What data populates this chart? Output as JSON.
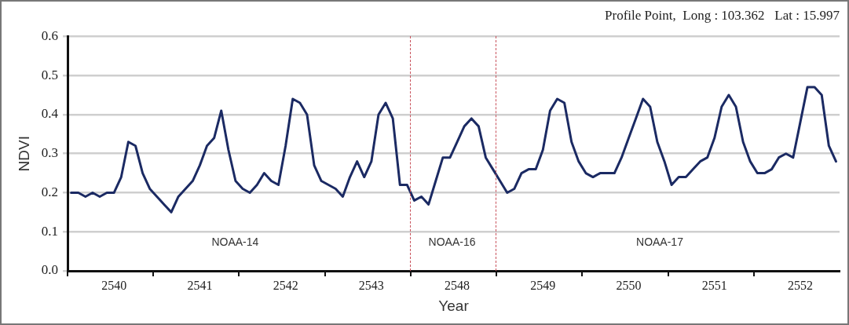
{
  "chart_data": {
    "type": "line",
    "title": "Profile Point,  Long : 103.362   Lat : 15.997",
    "xlabel": "Year",
    "ylabel": "NDVI",
    "categories": [
      null,
      null,
      null,
      null,
      null,
      null,
      "2540",
      null,
      null,
      null,
      null,
      null,
      null,
      null,
      null,
      null,
      null,
      null,
      "2541",
      null,
      null,
      null,
      null,
      null,
      null,
      null,
      null,
      null,
      null,
      null,
      "2542",
      null,
      null,
      null,
      null,
      null,
      null,
      null,
      null,
      null,
      null,
      null,
      "2543",
      null,
      null,
      null,
      null,
      null,
      null,
      null,
      null,
      null,
      null,
      null,
      "2548",
      null,
      null,
      null,
      null,
      null,
      null,
      null,
      null,
      null,
      null,
      null,
      "2549",
      null,
      null,
      null,
      null,
      null,
      null,
      null,
      null,
      null,
      null,
      null,
      "2550",
      null,
      null,
      null,
      null,
      null,
      null,
      null,
      null,
      null,
      null,
      null,
      "2551",
      null,
      null,
      null,
      null,
      null,
      null,
      null,
      null,
      null,
      null,
      null,
      "2552",
      null,
      null,
      null,
      null,
      null
    ],
    "series": [
      {
        "color": "#1b2a63",
        "values": [
          0.2,
          0.2,
          0.19,
          0.2,
          0.19,
          0.2,
          0.2,
          0.24,
          0.33,
          0.32,
          0.25,
          0.21,
          0.19,
          0.17,
          0.15,
          0.19,
          0.21,
          0.23,
          0.27,
          0.32,
          0.34,
          0.41,
          0.31,
          0.23,
          0.21,
          0.2,
          0.22,
          0.25,
          0.23,
          0.22,
          0.32,
          0.44,
          0.43,
          0.4,
          0.27,
          0.23,
          0.22,
          0.21,
          0.19,
          0.24,
          0.28,
          0.24,
          0.28,
          0.4,
          0.43,
          0.39,
          0.22,
          0.22,
          0.18,
          0.19,
          0.17,
          0.23,
          0.29,
          0.29,
          0.33,
          0.37,
          0.39,
          0.37,
          0.29,
          0.26,
          0.23,
          0.2,
          0.21,
          0.25,
          0.26,
          0.26,
          0.31,
          0.41,
          0.44,
          0.43,
          0.33,
          0.28,
          0.25,
          0.24,
          0.25,
          0.25,
          0.25,
          0.29,
          0.34,
          0.39,
          0.44,
          0.42,
          0.33,
          0.28,
          0.22,
          0.24,
          0.24,
          0.26,
          0.28,
          0.29,
          0.34,
          0.42,
          0.45,
          0.42,
          0.33,
          0.28,
          0.25,
          0.25,
          0.26,
          0.29,
          0.3,
          0.29,
          0.38,
          0.47,
          0.47,
          0.45,
          0.32,
          0.28
        ]
      }
    ],
    "ylim": [
      0,
      0.6
    ],
    "yticks": [
      {
        "value": 0,
        "label": "0.0"
      },
      {
        "value": 0.1,
        "label": "0.1"
      },
      {
        "value": 0.2,
        "label": "0.2"
      },
      {
        "value": 0.3,
        "label": "0.3"
      },
      {
        "value": 0.4,
        "label": "0.4"
      },
      {
        "value": 0.5,
        "label": "0.5"
      },
      {
        "value": 0.6,
        "label": "0.6"
      }
    ],
    "annotations": [
      "NOAA-14",
      "NOAA-16",
      "NOAA-17"
    ],
    "grid": "y",
    "legend": false,
    "marker": "none",
    "line_style": "solid"
  }
}
